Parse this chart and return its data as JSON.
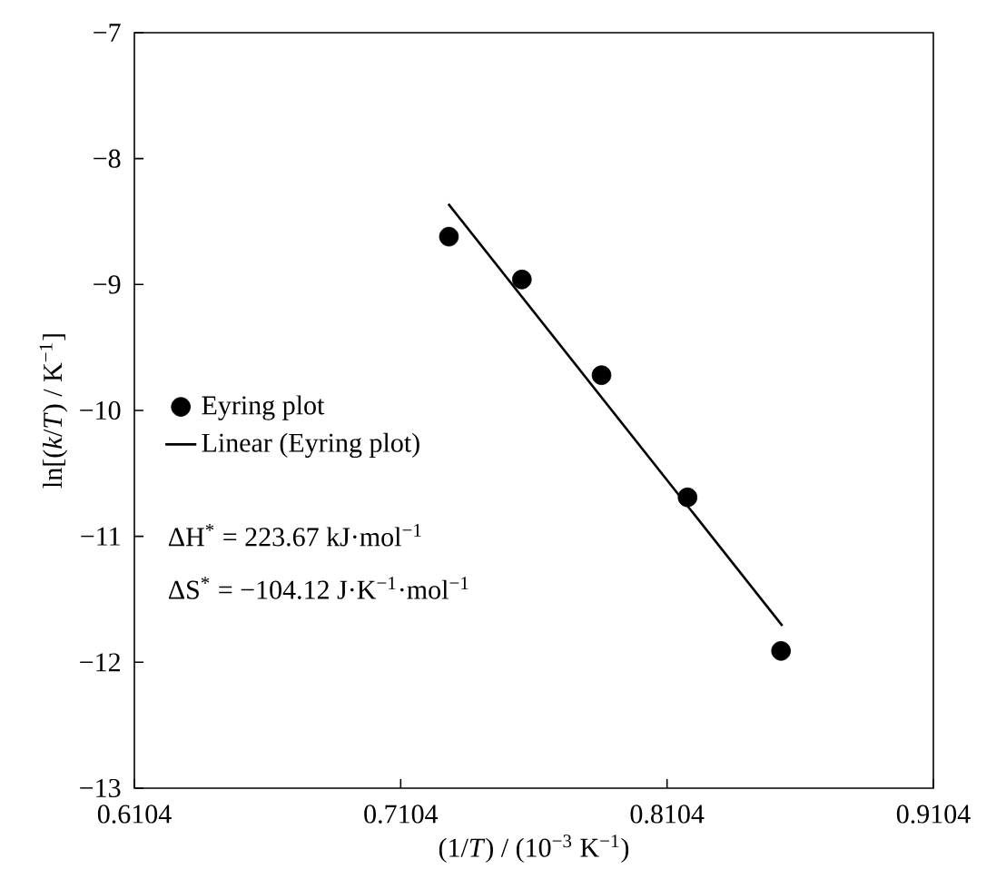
{
  "chart_data": {
    "type": "scatter",
    "xlabel": "(1/*T*) / (10$^{−3}$ K$^{−1}$)",
    "ylabel": "ln[(*k*/*T*) / K$^{−1}$]",
    "xlim": [
      0.6104,
      0.9104
    ],
    "xticks": [
      0.6104,
      0.7104,
      0.8104,
      0.9104
    ],
    "ylim": [
      -13,
      -7
    ],
    "yticks": [
      {
        "value": -13,
        "label": "−13"
      },
      {
        "value": -12,
        "label": "−12"
      },
      {
        "value": -11,
        "label": "−11"
      },
      {
        "value": -10,
        "label": "−10"
      },
      {
        "value": -9,
        "label": "−9"
      },
      {
        "value": -8,
        "label": "−8"
      },
      {
        "value": -7,
        "label": "−7"
      }
    ],
    "series": [
      {
        "name": "Eyring plot",
        "type": "scatter",
        "marker": "circle",
        "color": "#000000",
        "x": [
          0.7285,
          0.7559,
          0.7858,
          0.8181,
          0.8532
        ],
        "values": [
          -8.62,
          -8.96,
          -9.72,
          -10.69,
          -11.91
        ]
      },
      {
        "name": "Linear (Eyring plot)",
        "type": "line",
        "color": "#000000",
        "x": [
          0.7283,
          0.8537
        ],
        "values": [
          -8.36,
          -11.71
        ]
      }
    ],
    "legend": "left",
    "grid": false,
    "annotations": [
      "ΔH$^{*}$ = 223.67 kJ·mol$^{−1}$",
      "ΔS$^{*}$ = −104.12 J·K$^{−1}$·mol$^{−1}$"
    ]
  }
}
